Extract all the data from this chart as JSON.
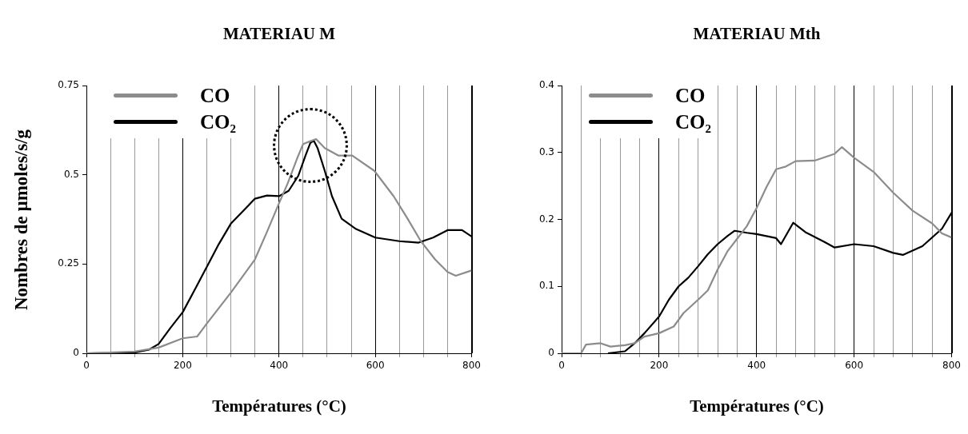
{
  "chart_data": [
    {
      "type": "line",
      "title": "MATERIAU M",
      "xlabel": "Températures (°C)",
      "ylabel": "Nombres de µmoles/s/g",
      "legend": "top left",
      "grid": "x",
      "marker": "none",
      "line_style": "solid",
      "xlim": [
        0,
        800
      ],
      "ylim": [
        0,
        0.75
      ],
      "xticks": [
        0,
        {
          "value": 50,
          "label": null
        },
        {
          "value": 100,
          "label": null
        },
        {
          "value": 150,
          "label": null
        },
        200,
        {
          "value": 250,
          "label": null
        },
        {
          "value": 300,
          "label": null
        },
        {
          "value": 350,
          "label": null
        },
        400,
        {
          "value": 450,
          "label": null
        },
        {
          "value": 500,
          "label": null
        },
        {
          "value": 550,
          "label": null
        },
        600,
        {
          "value": 650,
          "label": null
        },
        {
          "value": 700,
          "label": null
        },
        {
          "value": 750,
          "label": null
        },
        800
      ],
      "yticks": [
        0,
        0.25,
        0.5,
        0.75
      ],
      "series": [
        {
          "name": "CO",
          "color": "#8c8c8c",
          "x": [
            0,
            100,
            150,
            200,
            230,
            250,
            300,
            350,
            375,
            400,
            418,
            438,
            450,
            463,
            477,
            495,
            523,
            552,
            598,
            638,
            667,
            695,
            724,
            750,
            767,
            800
          ],
          "values": [
            0,
            0.005,
            0.016,
            0.042,
            0.047,
            0.083,
            0.17,
            0.263,
            0.34,
            0.42,
            0.476,
            0.547,
            0.586,
            0.593,
            0.6,
            0.575,
            0.554,
            0.554,
            0.511,
            0.44,
            0.377,
            0.313,
            0.263,
            0.228,
            0.217,
            0.232
          ]
        },
        {
          "name": "CO₂",
          "color": "#000000",
          "x": [
            0,
            100,
            130,
            150,
            175,
            200,
            225,
            250,
            275,
            300,
            325,
            350,
            375,
            400,
            420,
            440,
            455,
            465,
            472,
            480,
            495,
            510,
            530,
            560,
            600,
            650,
            690,
            720,
            750,
            780,
            800
          ],
          "values": [
            0,
            0.002,
            0.01,
            0.026,
            0.072,
            0.115,
            0.178,
            0.242,
            0.306,
            0.363,
            0.398,
            0.433,
            0.442,
            0.44,
            0.455,
            0.497,
            0.554,
            0.589,
            0.596,
            0.575,
            0.511,
            0.44,
            0.377,
            0.348,
            0.324,
            0.314,
            0.31,
            0.324,
            0.345,
            0.345,
            0.327
          ]
        }
      ]
    },
    {
      "type": "line",
      "title": "MATERIAU Mth",
      "xlabel": "Températures (°C)",
      "legend": "top left",
      "grid": "x",
      "marker": "none",
      "line_style": "solid",
      "xlim": [
        0,
        800
      ],
      "ylim": [
        0,
        0.4
      ],
      "xticks": [
        0,
        {
          "value": 40,
          "label": null
        },
        {
          "value": 80,
          "label": null
        },
        {
          "value": 120,
          "label": null
        },
        {
          "value": 160,
          "label": null
        },
        200,
        {
          "value": 240,
          "label": null
        },
        {
          "value": 280,
          "label": null
        },
        {
          "value": 320,
          "label": null
        },
        {
          "value": 360,
          "label": null
        },
        400,
        {
          "value": 440,
          "label": null
        },
        {
          "value": 480,
          "label": null
        },
        {
          "value": 520,
          "label": null
        },
        {
          "value": 560,
          "label": null
        },
        600,
        {
          "value": 640,
          "label": null
        },
        {
          "value": 680,
          "label": null
        },
        {
          "value": 720,
          "label": null
        },
        {
          "value": 760,
          "label": null
        },
        800
      ],
      "yticks": [
        0,
        0.1,
        0.2,
        0.3,
        0.4
      ],
      "series": [
        {
          "name": "CO",
          "color": "#8c8c8c",
          "x": [
            0,
            40,
            50,
            80,
            100,
            130,
            150,
            170,
            200,
            230,
            250,
            280,
            300,
            320,
            340,
            360,
            380,
            400,
            420,
            440,
            460,
            480,
            520,
            560,
            575,
            600,
            640,
            680,
            720,
            760,
            780,
            800
          ],
          "values": [
            0,
            0,
            0.013,
            0.015,
            0.01,
            0.012,
            0.015,
            0.025,
            0.03,
            0.04,
            0.06,
            0.08,
            0.094,
            0.125,
            0.152,
            0.171,
            0.19,
            0.217,
            0.248,
            0.275,
            0.279,
            0.287,
            0.288,
            0.298,
            0.308,
            0.292,
            0.271,
            0.24,
            0.213,
            0.194,
            0.179,
            0.173
          ]
        },
        {
          "name": "CO₂",
          "color": "#000000",
          "x": [
            95,
            130,
            150,
            170,
            200,
            220,
            240,
            260,
            280,
            300,
            320,
            340,
            355,
            380,
            400,
            440,
            450,
            475,
            500,
            540,
            560,
            600,
            640,
            680,
            700,
            740,
            780,
            800
          ],
          "values": [
            0,
            0.003,
            0.015,
            0.03,
            0.055,
            0.08,
            0.1,
            0.113,
            0.13,
            0.148,
            0.163,
            0.175,
            0.183,
            0.18,
            0.178,
            0.172,
            0.163,
            0.195,
            0.181,
            0.166,
            0.158,
            0.163,
            0.16,
            0.15,
            0.147,
            0.16,
            0.186,
            0.21
          ]
        }
      ]
    }
  ]
}
